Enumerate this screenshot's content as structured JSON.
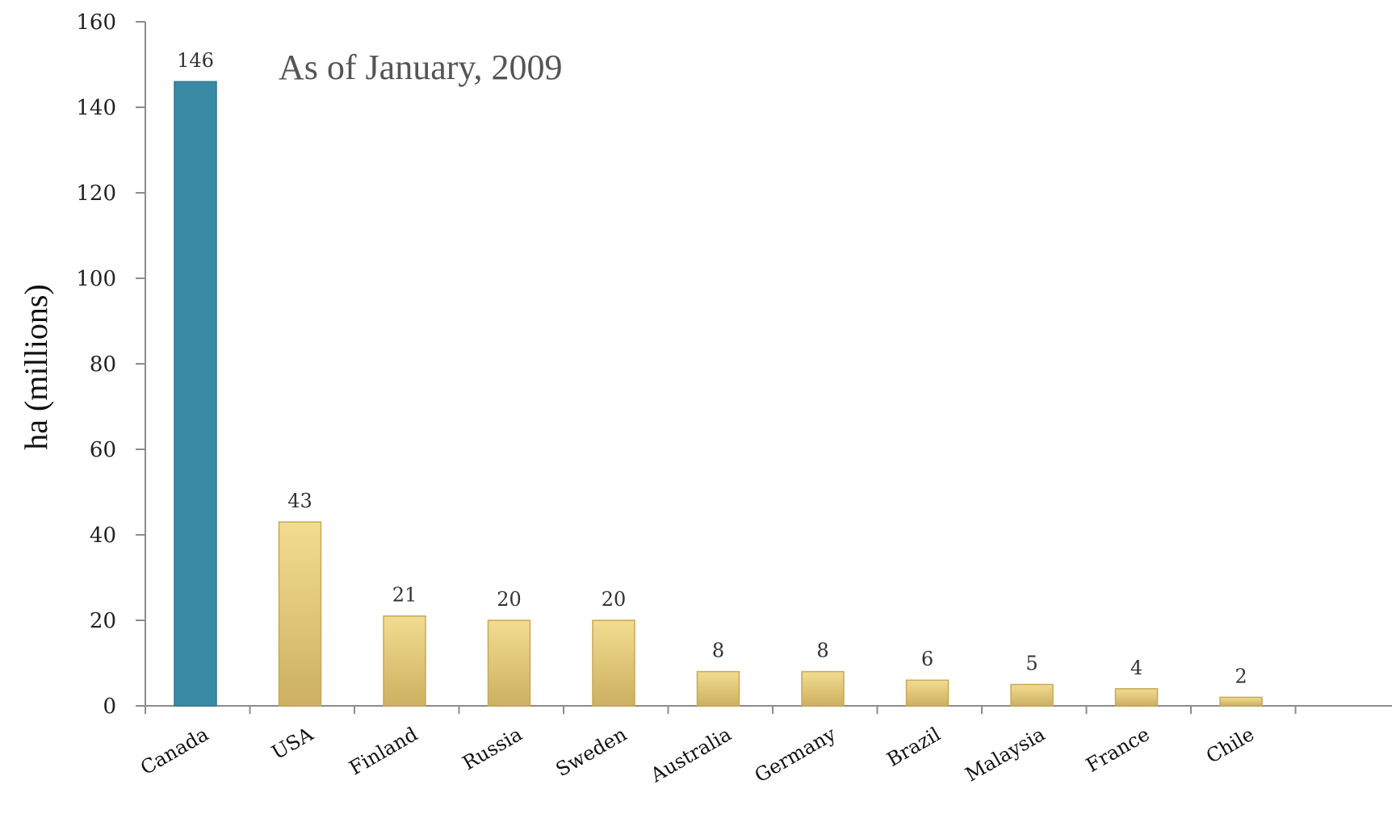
{
  "chart_data": {
    "type": "bar",
    "categories": [
      "Canada",
      "USA",
      "Finland",
      "Russia",
      "Sweden",
      "Australia",
      "Germany",
      "Brazil",
      "Malaysia",
      "France",
      "Chile"
    ],
    "values": [
      146,
      43,
      21,
      20,
      20,
      8,
      8,
      6,
      5,
      4,
      2
    ],
    "data_labels": [
      "146",
      "43",
      "21",
      "20",
      "20",
      "8",
      "8",
      "6",
      "5",
      "4",
      "2"
    ],
    "ylabel": "ha (millions)",
    "xlabel": "",
    "annotation": "As of January, 2009",
    "ylim": [
      0,
      160
    ],
    "yticks": [
      0,
      20,
      40,
      60,
      80,
      100,
      120,
      140,
      160
    ],
    "ytick_labels": [
      "0",
      "20",
      "40",
      "60",
      "80",
      "100",
      "120",
      "140",
      "160"
    ],
    "grid": false,
    "legend": "none",
    "colors": {
      "highlight_bar": "#3a8aa6",
      "highlight_bar_edge": "#2f7590",
      "bar_top": "#f2dc90",
      "bar_bottom": "#cdb061",
      "bar_edge": "#c4a957",
      "axis": "#8c8c8c"
    },
    "highlight_index": 0
  }
}
